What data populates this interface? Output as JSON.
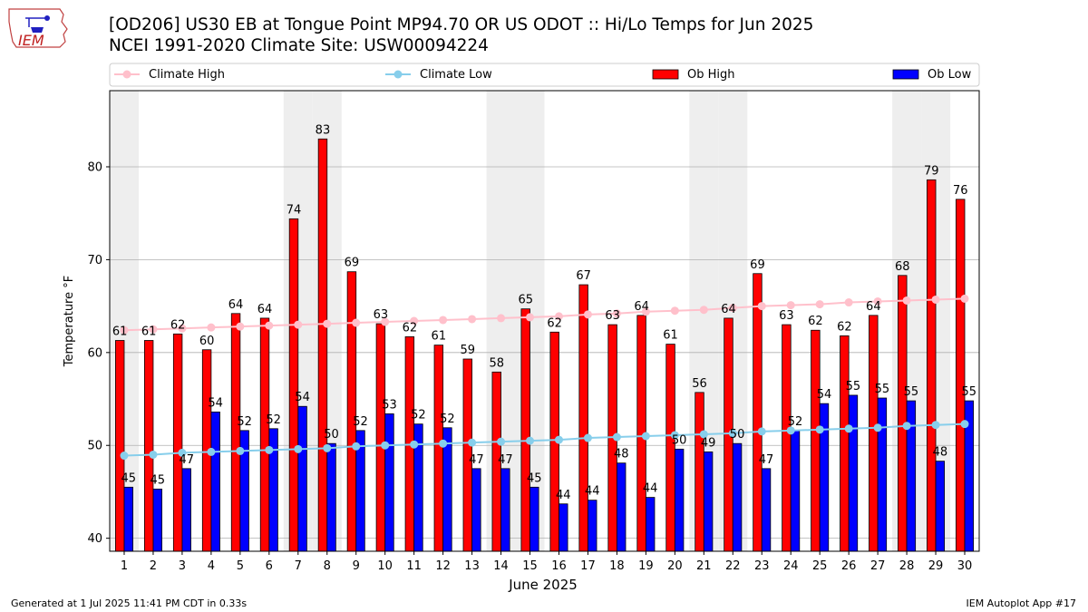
{
  "header": {
    "title_line1": "[OD206] US30 EB at Tongue Point MP94.70  OR US ODOT :: Hi/Lo Temps for Jun 2025",
    "title_line2": "NCEI 1991-2020 Climate Site: USW00094224",
    "logo_text": "IEM"
  },
  "footer": {
    "left": "Generated at 1 Jul 2025 11:41 PM CDT in 0.33s",
    "right": "IEM Autoplot App #17"
  },
  "colors": {
    "ob_high": "#ff0000",
    "ob_low": "#0000ff",
    "climate_high": "#ffc0cb",
    "climate_low": "#87ceeb",
    "weekend_shade": "#eeeeee",
    "grid": "#b0b0b0"
  },
  "chart_data": {
    "type": "bar",
    "xlabel": "June 2025",
    "ylabel": "Temperature °F",
    "ylim": [
      38.6,
      88.2
    ],
    "yticks": [
      40,
      50,
      60,
      70,
      80
    ],
    "grid": "horizontal",
    "legend_position": "top",
    "categories": [
      "1",
      "2",
      "3",
      "4",
      "5",
      "6",
      "7",
      "8",
      "9",
      "10",
      "11",
      "12",
      "13",
      "14",
      "15",
      "16",
      "17",
      "18",
      "19",
      "20",
      "21",
      "22",
      "23",
      "24",
      "25",
      "26",
      "27",
      "28",
      "29",
      "30"
    ],
    "shaded_days": [
      1,
      7,
      8,
      14,
      15,
      21,
      22,
      28,
      29
    ],
    "series": [
      {
        "name": "Climate High",
        "kind": "line",
        "values": [
          62.4,
          62.5,
          62.6,
          62.7,
          62.8,
          62.9,
          63.0,
          63.1,
          63.2,
          63.3,
          63.4,
          63.5,
          63.6,
          63.7,
          63.8,
          63.9,
          64.1,
          64.2,
          64.4,
          64.5,
          64.6,
          64.8,
          65.0,
          65.1,
          65.2,
          65.4,
          65.5,
          65.6,
          65.7,
          65.8
        ]
      },
      {
        "name": "Climate Low",
        "kind": "line",
        "values": [
          48.9,
          49.0,
          49.2,
          49.3,
          49.4,
          49.5,
          49.6,
          49.7,
          49.9,
          50.0,
          50.1,
          50.2,
          50.3,
          50.4,
          50.5,
          50.6,
          50.8,
          50.9,
          51.0,
          51.1,
          51.2,
          51.3,
          51.5,
          51.6,
          51.7,
          51.8,
          51.9,
          52.1,
          52.2,
          52.3
        ]
      },
      {
        "name": "Ob High",
        "kind": "bar",
        "values": [
          61.3,
          61.3,
          62.0,
          60.3,
          64.2,
          63.7,
          74.4,
          83.0,
          68.7,
          63.1,
          61.7,
          60.8,
          59.3,
          57.9,
          64.7,
          62.2,
          67.3,
          63.0,
          64.0,
          60.9,
          55.7,
          63.7,
          68.5,
          63.0,
          62.4,
          61.8,
          64.0,
          68.3,
          78.6,
          76.5
        ],
        "labels": [
          "61",
          "61",
          "62",
          "60",
          "64",
          "64",
          "74",
          "83",
          "69",
          "63",
          "62",
          "61",
          "59",
          "58",
          "65",
          "62",
          "67",
          "63",
          "64",
          "61",
          "56",
          "64",
          "69",
          "63",
          "62",
          "62",
          "64",
          "68",
          "79",
          "76"
        ]
      },
      {
        "name": "Ob Low",
        "kind": "bar",
        "values": [
          45.5,
          45.3,
          47.5,
          53.6,
          51.6,
          51.8,
          54.2,
          50.2,
          51.6,
          53.4,
          52.3,
          51.9,
          47.5,
          47.5,
          45.5,
          43.7,
          44.1,
          48.1,
          44.4,
          49.6,
          49.3,
          50.2,
          47.5,
          51.6,
          54.5,
          55.4,
          55.1,
          54.8,
          48.3,
          54.8
        ],
        "labels": [
          "45",
          "45",
          "47",
          "54",
          "52",
          "52",
          "54",
          "50",
          "52",
          "53",
          "52",
          "52",
          "47",
          "47",
          "45",
          "44",
          "44",
          "48",
          "44",
          "50",
          "49",
          "50",
          "47",
          "52",
          "54",
          "55",
          "55",
          "55",
          "48",
          "55"
        ]
      }
    ]
  }
}
